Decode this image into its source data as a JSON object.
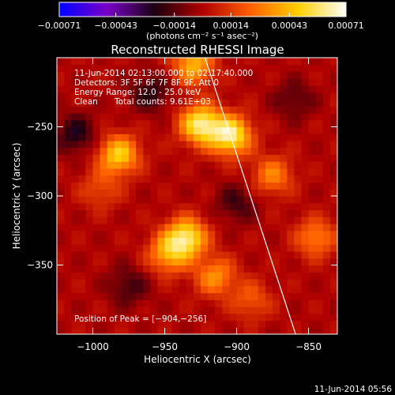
{
  "chart_data": {
    "type": "heatmap",
    "title": "Reconstructed RHESSI Image",
    "xlabel": "Heliocentric X (arcsec)",
    "ylabel": "Heliocentric Y (arcsec)",
    "xlim": [
      -1025,
      -830
    ],
    "ylim": [
      -400,
      -200
    ],
    "x_ticks": [
      -1000,
      -950,
      -900,
      -850
    ],
    "x_tick_labels": [
      "−1000",
      "−950",
      "−900",
      "−850"
    ],
    "y_ticks": [
      -250,
      -300,
      -350
    ],
    "y_tick_labels": [
      "−250",
      "−300",
      "−350"
    ],
    "colorbar": {
      "min": -0.00071,
      "max": 0.00071,
      "ticks": [
        -0.00071,
        -0.00043,
        -0.00014,
        0.00014,
        0.00043,
        0.00071
      ],
      "tick_labels": [
        "−0.00071",
        "−0.00043",
        "−0.00014",
        "0.00014",
        "0.00043",
        "0.00071"
      ],
      "units_label": "(photons cm⁻² s⁻¹ asec⁻²)",
      "colormap": [
        "#0000ff",
        "#7a00c8",
        "#1a0010",
        "#b00000",
        "#ff6000",
        "#ffd000",
        "#ffffff"
      ]
    },
    "annotations": {
      "time_range": "11-Jun-2014 02:13:00.000 to 02:17:40.000",
      "detectors": "Detectors: 3F 5F 6F 7F 8F 9F, Att 0",
      "energy_range": "Energy Range: 12.0 - 25.0 keV",
      "method": "Clean",
      "total_counts": "Total counts: 9.61E+03",
      "peak": "Position of Peak = [−904,−256]"
    },
    "peak_position": [
      -904,
      -256
    ],
    "sources": [
      {
        "x": -925,
        "y": -248,
        "rel_intensity": 1.0
      },
      {
        "x": -904,
        "y": -256,
        "rel_intensity": 1.0
      },
      {
        "x": -935,
        "y": -330,
        "rel_intensity": 0.95
      },
      {
        "x": -982,
        "y": -270,
        "rel_intensity": 0.8
      },
      {
        "x": -930,
        "y": -205,
        "rel_intensity": 0.7
      },
      {
        "x": -948,
        "y": -342,
        "rel_intensity": 0.6
      },
      {
        "x": -915,
        "y": -358,
        "rel_intensity": 0.55
      },
      {
        "x": -875,
        "y": -285,
        "rel_intensity": 0.5
      },
      {
        "x": -890,
        "y": -375,
        "rel_intensity": 0.35
      },
      {
        "x": -845,
        "y": -330,
        "rel_intensity": 0.5
      },
      {
        "x": -995,
        "y": -295,
        "rel_intensity": 0.3
      },
      {
        "x": -960,
        "y": -225,
        "rel_intensity": -0.35
      },
      {
        "x": -900,
        "y": -305,
        "rel_intensity": -0.3
      },
      {
        "x": -975,
        "y": -365,
        "rel_intensity": -0.3
      },
      {
        "x": -1012,
        "y": -255,
        "rel_intensity": -0.4
      },
      {
        "x": -860,
        "y": -230,
        "rel_intensity": -0.25
      }
    ],
    "limb_line": {
      "x": [
        -922,
        -859
      ],
      "y": [
        -200,
        -400
      ]
    }
  },
  "footer": {
    "timestamp": "11-Jun-2014 05:56"
  }
}
